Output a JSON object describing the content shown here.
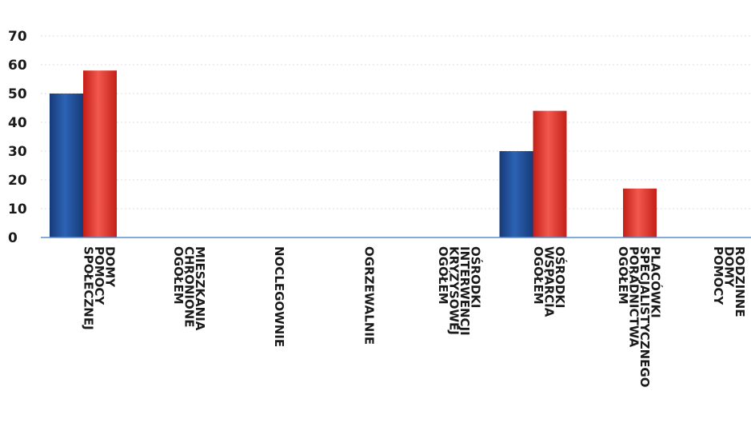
{
  "chart_data": {
    "type": "bar",
    "categories": [
      [
        "DOMY",
        "POMOCY",
        "SPOŁECZNEJ"
      ],
      [
        "MIESZKANIA",
        "CHRONIONE",
        "OGÓŁEM"
      ],
      [
        "NOCLEGOWNIE"
      ],
      [
        "OGRZEWALNIE"
      ],
      [
        "OŚRODKI",
        "INTERWENCJI",
        "KRYZYSOWEJ",
        "OGÓŁEM"
      ],
      [
        "OŚRODKI",
        "WSPARCIA",
        "OGÓŁEM"
      ],
      [
        "PLACÓWKI",
        "SPECJALISTYCZNEGO",
        "PORADNICTWA",
        "OGÓŁEM"
      ],
      [
        "RODZINNE",
        "DOMY",
        "POMOCY"
      ]
    ],
    "series": [
      {
        "values": [
          50,
          0,
          0,
          0,
          0,
          30,
          0,
          0
        ],
        "color": "#1f4e9a"
      },
      {
        "values": [
          58,
          0,
          0,
          0,
          0,
          44,
          17,
          0
        ],
        "color": "#e8332a"
      }
    ],
    "ylim": [
      0,
      70
    ],
    "yticks": [
      0,
      10,
      20,
      30,
      40,
      50,
      60,
      70
    ],
    "grid": true,
    "axis_color": "#5b8fd0"
  }
}
